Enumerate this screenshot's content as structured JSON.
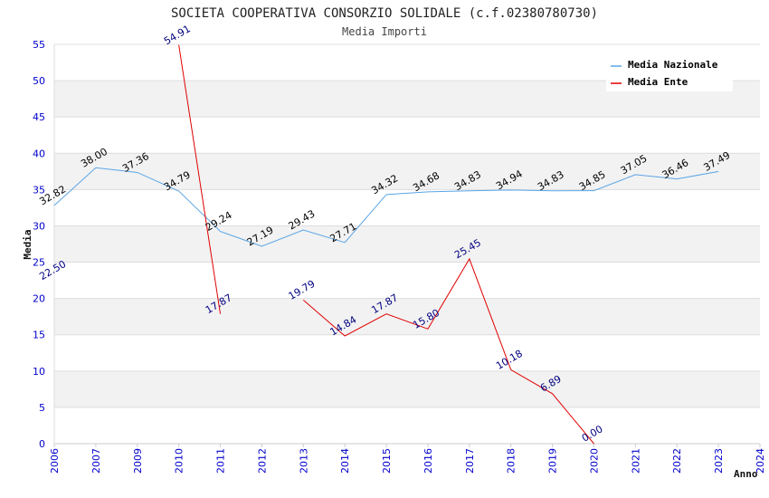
{
  "chart_data": {
    "type": "line",
    "title": "SOCIETA COOPERATIVA CONSORZIO SOLIDALE (c.f.02380780730)",
    "subtitle": "Media Importi",
    "xlabel": "Anno",
    "ylabel": "Media",
    "ylim": [
      0,
      55
    ],
    "yticks": [
      0,
      5,
      10,
      15,
      20,
      25,
      30,
      35,
      40,
      45,
      50,
      55
    ],
    "categories": [
      "2006",
      "2007",
      "2009",
      "2010",
      "2011",
      "2012",
      "2013",
      "2014",
      "2015",
      "2016",
      "2017",
      "2018",
      "2019",
      "2020",
      "2021",
      "2022",
      "2023",
      "2024"
    ],
    "grid": true,
    "legend_position": "top-right",
    "series": [
      {
        "name": "Media Nazionale",
        "color": "#5aa5e6",
        "values": [
          32.82,
          38.0,
          37.36,
          34.79,
          29.24,
          27.19,
          29.43,
          27.71,
          34.32,
          34.68,
          34.83,
          34.94,
          34.83,
          34.85,
          37.05,
          36.46,
          37.49,
          null
        ],
        "labels": [
          "32.82",
          "38.00",
          "37.36",
          "34.79",
          "29.24",
          "27.19",
          "29.43",
          "27.71",
          "34.32",
          "34.68",
          "34.83",
          "34.94",
          "34.83",
          "34.85",
          "37.05",
          "36.46",
          "37.49",
          null
        ]
      },
      {
        "name": "Media Ente",
        "color": "#e00000",
        "values": [
          22.5,
          null,
          null,
          54.91,
          17.87,
          null,
          19.79,
          14.84,
          17.87,
          15.8,
          25.45,
          10.18,
          6.89,
          0.0,
          null,
          null,
          null,
          null
        ],
        "labels": [
          "22.50",
          null,
          null,
          "54.91",
          "17.87",
          null,
          "19.79",
          "14.84",
          "17.87",
          "15.80",
          "25.45",
          "10.18",
          "6.89",
          "0.00",
          null,
          null,
          null,
          null
        ]
      }
    ]
  }
}
